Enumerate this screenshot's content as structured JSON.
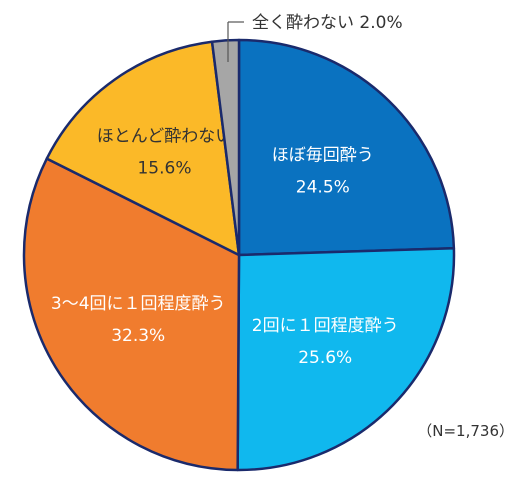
{
  "chart_data": {
    "type": "pie",
    "categories": [
      "ほぼ毎回酔う",
      "2回に１回程度酔う",
      "3～4回に１回程度酔う",
      "ほとんど酔わない",
      "全く酔わない"
    ],
    "values": [
      24.5,
      25.6,
      32.3,
      15.6,
      2.0
    ],
    "value_labels": [
      "24.5%",
      "25.6%",
      "32.3%",
      "15.6%",
      "2.0%"
    ],
    "outside_label": "全く酔わない 2.0%",
    "colors": [
      "#0a72c0",
      "#10b8ee",
      "#f07c2e",
      "#fbb928",
      "#a6a6a6"
    ],
    "outline_color": "#1a2a6c",
    "start": "12 o'clock",
    "direction": "clockwise"
  },
  "note": "（N=1,736）"
}
